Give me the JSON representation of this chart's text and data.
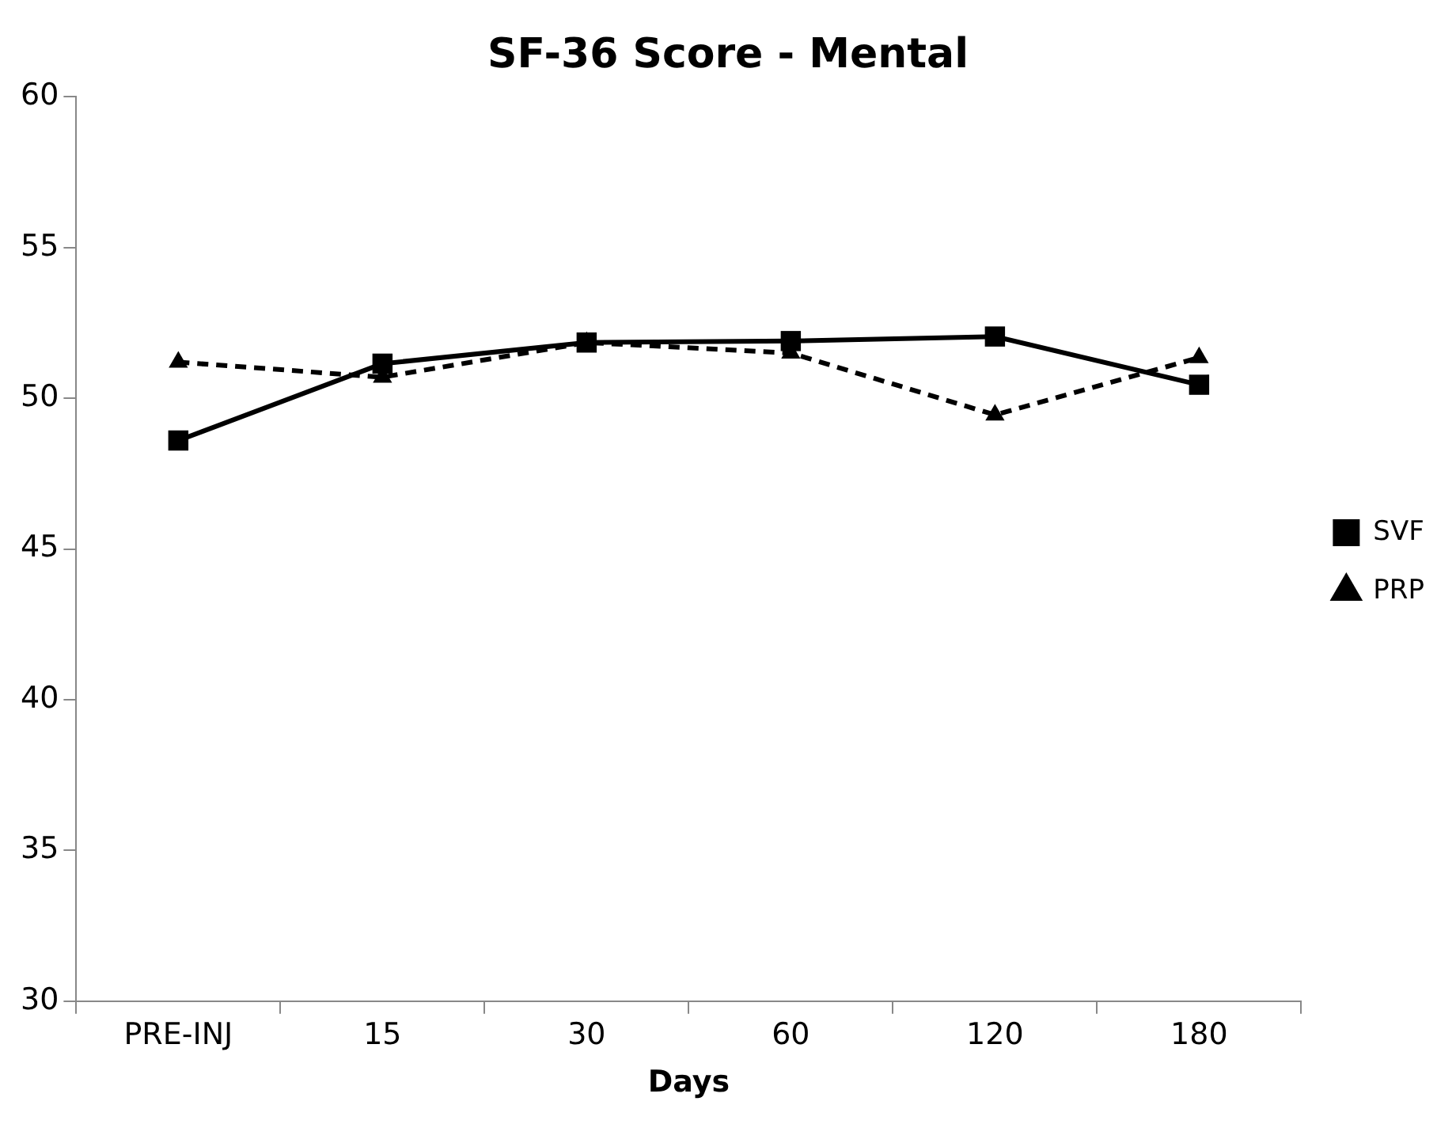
{
  "chart_data": {
    "type": "line",
    "title": "SF-36 Score - Mental",
    "xlabel": "Days",
    "categories": [
      "PRE-INJ",
      "15",
      "30",
      "60",
      "120",
      "180"
    ],
    "series": [
      {
        "name": "SVF",
        "color": "#000000",
        "marker": "square",
        "line_style": "solid",
        "values": [
          48.6,
          51.15,
          51.85,
          51.9,
          52.05,
          50.45
        ]
      },
      {
        "name": "PRP",
        "color": "#000000",
        "marker": "triangle",
        "line_style": "dashed",
        "values": [
          51.2,
          50.7,
          51.85,
          51.5,
          49.45,
          51.35
        ]
      }
    ],
    "ylim": [
      30,
      60
    ],
    "yticks": [
      30,
      35,
      40,
      45,
      50,
      55,
      60
    ],
    "grid": false,
    "legend": "right"
  }
}
